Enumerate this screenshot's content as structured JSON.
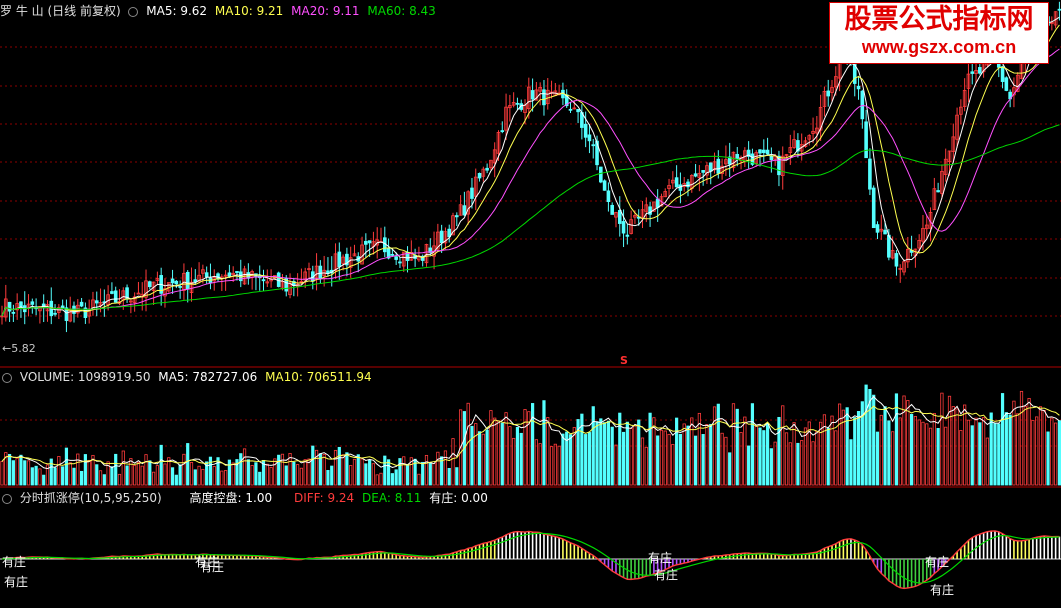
{
  "price_header": {
    "title": "罗 牛 山 (日线 前复权)",
    "ma5": "MA5: 9.62",
    "ma10": "MA10: 9.21",
    "ma20": "MA20: 9.11",
    "ma60": "MA60: 8.43"
  },
  "price_low_label": "←5.82",
  "s_marker": "S",
  "volume_header": {
    "volume": "VOLUME: 1098919.50",
    "ma5": "MA5: 782727.06",
    "ma10": "MA10: 706511.94"
  },
  "indicator_header": {
    "name": "分时抓涨停(10,5,95,250)",
    "control": "高度控盘: 1.00",
    "diff": "DIFF: 9.24",
    "dea": "DEA: 8.11",
    "zhuang": "有庄: 0.00"
  },
  "zhuang_labels": [
    "有庄",
    "有庄",
    "有庄",
    "有庄",
    "有庄",
    "有庄",
    "有庄",
    "有庄"
  ],
  "watermark": {
    "title": "股票公式指标网",
    "url": "www.gszx.com.cn"
  },
  "colors": {
    "up": "#ff3c3c",
    "down": "#54ffff",
    "ma5": "#ffffff",
    "ma10": "#ffff50",
    "ma20": "#ff50ff",
    "ma60": "#00d800",
    "grid": "#8b0000"
  },
  "chart_data": {
    "type": "candlestick",
    "price_anchors": [
      [
        0,
        6.1
      ],
      [
        20,
        6.0
      ],
      [
        40,
        6.4
      ],
      [
        60,
        6.6
      ],
      [
        75,
        6.4
      ],
      [
        90,
        6.8
      ],
      [
        100,
        7.0
      ],
      [
        110,
        6.8
      ],
      [
        120,
        7.4
      ],
      [
        128,
        8.2
      ],
      [
        133,
        9.0
      ],
      [
        140,
        9.3
      ],
      [
        150,
        9.1
      ],
      [
        155,
        8.6
      ],
      [
        160,
        7.6
      ],
      [
        165,
        7.2
      ],
      [
        175,
        7.8
      ],
      [
        185,
        8.1
      ],
      [
        195,
        8.4
      ],
      [
        205,
        8.2
      ],
      [
        215,
        8.9
      ],
      [
        222,
        9.9
      ],
      [
        226,
        9.3
      ],
      [
        230,
        7.4
      ],
      [
        236,
        6.7
      ],
      [
        244,
        7.3
      ],
      [
        254,
        9.4
      ],
      [
        262,
        9.8
      ],
      [
        266,
        9.2
      ],
      [
        272,
        10.2
      ],
      [
        279,
        10.4
      ]
    ],
    "ylim": [
      5.6,
      10.6
    ],
    "low_marker": 5.82
  }
}
